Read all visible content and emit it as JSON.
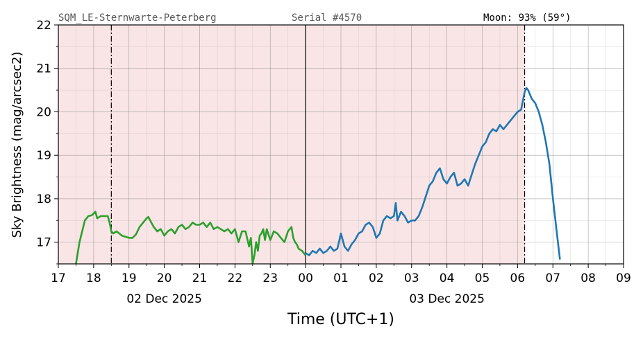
{
  "header": {
    "station": "SQM_LE-Sternwarte-Peterberg",
    "serial": "Serial #4570",
    "moon": "Moon: 93% (59°)"
  },
  "chart_data": {
    "type": "line",
    "xlabel": "Time (UTC+1)",
    "ylabel": "Sky Brightness (mag/arcsec2)",
    "ylim": [
      16.5,
      22
    ],
    "xlim": [
      17,
      33
    ],
    "x_tick_values": [
      17,
      18,
      19,
      20,
      21,
      22,
      23,
      24,
      25,
      26,
      27,
      28,
      29,
      30,
      31,
      32,
      33
    ],
    "x_tick_labels": [
      "17",
      "18",
      "19",
      "20",
      "21",
      "22",
      "23",
      "00",
      "01",
      "02",
      "03",
      "04",
      "05",
      "06",
      "07",
      "08",
      "09"
    ],
    "y_ticks": [
      17,
      18,
      19,
      20,
      21,
      22
    ],
    "date_labels": [
      {
        "label": "02 Dec 2025",
        "x": 20
      },
      {
        "label": "03 Dec 2025",
        "x": 28
      }
    ],
    "grid": true,
    "night_shading": {
      "from": 17,
      "to": 30.2,
      "color": "#f9e5e5"
    },
    "midnight_line": 24,
    "dashdot_lines": [
      18.5,
      30.2
    ],
    "series": [
      {
        "color": "#2ca02c",
        "x": [
          17.5,
          17.6,
          17.75,
          17.85,
          17.95,
          18.05,
          18.1,
          18.2,
          18.3,
          18.4,
          18.45,
          18.5,
          18.55,
          18.65,
          18.8,
          19.0,
          19.1,
          19.2,
          19.3,
          19.4,
          19.5,
          19.55,
          19.6,
          19.7,
          19.8,
          19.9,
          20.0,
          20.1,
          20.2,
          20.3,
          20.4,
          20.5,
          20.6,
          20.7,
          20.8,
          20.9,
          21.0,
          21.1,
          21.2,
          21.3,
          21.4,
          21.5,
          21.6,
          21.7,
          21.8,
          21.9,
          22.0,
          22.1,
          22.2,
          22.3,
          22.4,
          22.45,
          22.5,
          22.55,
          22.6,
          22.65,
          22.7,
          22.75,
          22.8,
          22.85,
          22.9,
          23.0,
          23.1,
          23.2,
          23.3,
          23.4,
          23.5,
          23.6,
          23.65,
          23.7,
          23.75,
          23.8,
          23.9,
          24.0
        ],
        "y": [
          16.5,
          17.0,
          17.5,
          17.6,
          17.62,
          17.7,
          17.55,
          17.6,
          17.6,
          17.6,
          17.45,
          17.25,
          17.2,
          17.25,
          17.15,
          17.1,
          17.1,
          17.18,
          17.35,
          17.45,
          17.55,
          17.58,
          17.5,
          17.35,
          17.25,
          17.3,
          17.15,
          17.25,
          17.3,
          17.2,
          17.35,
          17.4,
          17.3,
          17.35,
          17.45,
          17.4,
          17.4,
          17.45,
          17.35,
          17.45,
          17.3,
          17.35,
          17.3,
          17.25,
          17.3,
          17.2,
          17.3,
          17.0,
          17.25,
          17.25,
          16.9,
          17.1,
          16.5,
          16.7,
          17.0,
          16.8,
          17.15,
          17.2,
          17.3,
          17.05,
          17.3,
          17.05,
          17.25,
          17.2,
          17.1,
          17.0,
          17.25,
          17.35,
          17.1,
          17.0,
          16.95,
          16.85,
          16.8,
          16.7
        ]
      },
      {
        "color": "#1f77b4",
        "x": [
          24.0,
          24.1,
          24.2,
          24.3,
          24.4,
          24.5,
          24.6,
          24.7,
          24.8,
          24.9,
          25.0,
          25.1,
          25.2,
          25.3,
          25.4,
          25.5,
          25.6,
          25.7,
          25.8,
          25.9,
          26.0,
          26.1,
          26.2,
          26.3,
          26.4,
          26.5,
          26.55,
          26.6,
          26.7,
          26.8,
          26.9,
          27.0,
          27.1,
          27.2,
          27.3,
          27.4,
          27.5,
          27.6,
          27.7,
          27.8,
          27.9,
          28.0,
          28.1,
          28.2,
          28.3,
          28.4,
          28.5,
          28.6,
          28.7,
          28.8,
          28.9,
          29.0,
          29.1,
          29.2,
          29.3,
          29.4,
          29.5,
          29.6,
          29.7,
          29.8,
          29.9,
          30.0,
          30.1,
          30.2,
          30.25,
          30.3,
          30.4,
          30.5,
          30.6,
          30.7,
          30.8,
          30.9,
          31.0,
          31.1,
          31.2
        ],
        "y": [
          16.75,
          16.7,
          16.8,
          16.75,
          16.85,
          16.75,
          16.8,
          16.9,
          16.8,
          16.85,
          17.2,
          16.9,
          16.8,
          16.95,
          17.05,
          17.2,
          17.25,
          17.4,
          17.45,
          17.35,
          17.1,
          17.2,
          17.5,
          17.6,
          17.55,
          17.6,
          17.9,
          17.5,
          17.7,
          17.6,
          17.45,
          17.5,
          17.5,
          17.6,
          17.8,
          18.05,
          18.3,
          18.4,
          18.6,
          18.7,
          18.45,
          18.35,
          18.5,
          18.6,
          18.3,
          18.35,
          18.45,
          18.3,
          18.55,
          18.8,
          19.0,
          19.2,
          19.3,
          19.5,
          19.6,
          19.55,
          19.7,
          19.6,
          19.7,
          19.8,
          19.9,
          20.0,
          20.05,
          20.45,
          20.55,
          20.5,
          20.3,
          20.2,
          20.0,
          19.7,
          19.3,
          18.8,
          18.0,
          17.3,
          16.6
        ]
      }
    ]
  }
}
